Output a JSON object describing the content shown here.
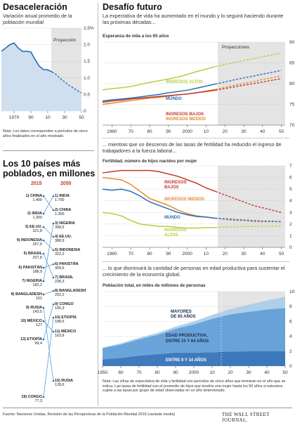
{
  "left_top": {
    "title": "Desaceleración",
    "subtitle": "Variación anual promedio de la población mundial",
    "note": "Nota: Los datos corresponden a períodos de cinco años finalizados en el año mostrado.",
    "projection_label": "Proyección"
  },
  "ranking": {
    "title": "Los 10 países más poblados, en millones",
    "year_left": "2015",
    "year_right": "2050"
  },
  "right": {
    "title": "Desafío futuro",
    "subtitle": "La expectativa de vida ha aumentado en el mundo y lo seguirá haciendo durante las próximas décadas...",
    "sub2": "... mientras que un descenso de las tasas de fertilidad ha reducido el ingreso de trabajadores a la fuerza laboral...",
    "sub3": "... lo que disminuirá la cantidad de personas en edad productiva para sustentar el crecimiento de la economía global.",
    "note": "Nota: Las cifras de expectativa de vida y fertilidad son períodos de cinco años que terminan en el año que se indica. Las tasas de fertilidad son el promedio de hijos que tendría una mujer hasta los 50 años si estuviera sujeta a las tasas por grupo de edad observadas en un año determinado."
  },
  "footer": {
    "source": "Fuente: Naciones Unidas, Revisión de las Perspectivas de la Población Mundial 2015 (variante media)",
    "brand": "THE WALL STREET JOURNAL."
  },
  "chart_data": [
    {
      "type": "area",
      "title": "Desaceleración",
      "x": [
        1955,
        1960,
        1965,
        1970,
        1975,
        1980,
        1985,
        1990,
        1995,
        2000,
        2005,
        2010,
        2015,
        2020,
        2025,
        2030,
        2035,
        2040,
        2045,
        2050
      ],
      "series": [
        {
          "values": [
            1.8,
            1.9,
            2.0,
            2.05,
            1.9,
            1.8,
            1.8,
            1.78,
            1.55,
            1.35,
            1.25,
            1.24,
            1.18,
            1.1,
            0.98,
            0.88,
            0.78,
            0.7,
            0.62,
            0.55
          ]
        }
      ],
      "xticks": [
        "1970",
        "90",
        "10",
        "30",
        "50"
      ],
      "yticks": [
        "0",
        "0.5",
        "1.0",
        "1.5",
        "2.0",
        "2,5%"
      ],
      "ylim": [
        0,
        2.5
      ],
      "projection_from": 2015
    },
    {
      "type": "table",
      "title": "Los 10 países más poblados, en millones",
      "columns": [
        "2015",
        "2050"
      ],
      "rows_2015": [
        {
          "rank": "1) CHINA",
          "value": "1.400"
        },
        {
          "rank": "2) INDIA",
          "value": "1.300"
        },
        {
          "rank": "3) EE.UU.",
          "value": "321,8"
        },
        {
          "rank": "4) INDONESIA",
          "value": "257,6"
        },
        {
          "rank": "5) BRASIL",
          "value": "207,8"
        },
        {
          "rank": "6) PAKISTÁN",
          "value": "188,9"
        },
        {
          "rank": "7) NIGERIA",
          "value": "182,2"
        },
        {
          "rank": "8) BANGLADESH",
          "value": "161"
        },
        {
          "rank": "9) RUSIA",
          "value": "143,5"
        },
        {
          "rank": "10) MÉXICO",
          "value": "127"
        },
        {
          "rank": "13) ETIOPÍA",
          "value": "99,4"
        },
        {
          "rank": "19) CONGO",
          "value": "77,3"
        }
      ],
      "rows_2050": [
        {
          "rank": "1) INDIA",
          "value": "1.700"
        },
        {
          "rank": "2) CHINA",
          "value": "1.300"
        },
        {
          "rank": "3) NIGERIA",
          "value": "398,5"
        },
        {
          "rank": "4) EE.UU.",
          "value": "388,9"
        },
        {
          "rank": "5) INDONESIA",
          "value": "322,2"
        },
        {
          "rank": "6) PAKISTÁN",
          "value": "309,6"
        },
        {
          "rank": "7) BRASIL",
          "value": "238,3"
        },
        {
          "rank": "8) BANGLADESH",
          "value": "202,2"
        },
        {
          "rank": "9) CONGO",
          "value": "195,3"
        },
        {
          "rank": "10) ETIOPÍA",
          "value": "188,5"
        },
        {
          "rank": "11) MÉXICO",
          "value": "163,8"
        },
        {
          "rank": "15) RUSIA",
          "value": "128,6"
        }
      ]
    },
    {
      "type": "line",
      "title": "Esperanza de vida a los 65 años",
      "x": [
        1955,
        1960,
        1965,
        1970,
        1975,
        1980,
        1985,
        1990,
        1995,
        2000,
        2005,
        2010,
        2015,
        2020,
        2025,
        2030,
        2035,
        2040,
        2045,
        2050
      ],
      "series": [
        {
          "name": "INGRESOS ALTOS",
          "values": [
            78.5,
            78.8,
            79.0,
            79.3,
            79.8,
            80.3,
            80.7,
            81.1,
            81.6,
            82.2,
            82.9,
            83.5,
            84.1,
            84.6,
            85.1,
            85.6,
            86.0,
            86.5,
            86.9,
            87.4
          ]
        },
        {
          "name": "MUNDO",
          "values": [
            75.8,
            76.1,
            76.3,
            76.5,
            76.8,
            77.1,
            77.4,
            77.8,
            78.1,
            78.4,
            78.9,
            79.4,
            79.9,
            80.4,
            80.9,
            81.4,
            81.8,
            82.3,
            82.7,
            83.2
          ]
        },
        {
          "name": "INGRESOS MEDIOS",
          "values": [
            75.0,
            75.3,
            75.6,
            75.9,
            76.2,
            76.5,
            76.7,
            77.0,
            77.3,
            77.5,
            77.8,
            78.2,
            78.6,
            79.1,
            79.6,
            80.0,
            80.5,
            81.0,
            81.4,
            81.9
          ]
        },
        {
          "name": "INGRESOS BAJOS",
          "values": [
            75.5,
            75.8,
            76.0,
            76.3,
            76.5,
            76.7,
            76.9,
            77.1,
            77.3,
            77.5,
            77.8,
            78.1,
            78.4,
            78.8,
            79.2,
            79.6,
            80.0,
            80.4,
            80.8,
            81.2
          ]
        }
      ],
      "xticks": [
        "1960",
        "70",
        "80",
        "90",
        "2000",
        "10",
        "20",
        "30",
        "40",
        "50"
      ],
      "yticks": [
        "70",
        "75",
        "80",
        "85",
        "90"
      ],
      "ylim": [
        70,
        90
      ],
      "projection_label": "Proyecciones",
      "projection_from": 2015
    },
    {
      "type": "line",
      "title": "Fertilidad, número de hijos nacidos por mujer",
      "x": [
        1955,
        1960,
        1965,
        1970,
        1975,
        1980,
        1985,
        1990,
        1995,
        2000,
        2005,
        2010,
        2015,
        2020,
        2025,
        2030,
        2035,
        2040,
        2045,
        2050
      ],
      "series": [
        {
          "name": "INGRESOS BAJOS",
          "values": [
            6.4,
            6.5,
            6.6,
            6.6,
            6.6,
            6.6,
            6.5,
            6.3,
            6.1,
            5.8,
            5.5,
            5.1,
            4.8,
            4.5,
            4.2,
            3.9,
            3.6,
            3.4,
            3.2,
            3.0
          ]
        },
        {
          "name": "INGRESOS MEDIOS",
          "values": [
            6.0,
            5.9,
            5.8,
            5.4,
            4.8,
            4.2,
            3.9,
            3.6,
            3.2,
            2.9,
            2.7,
            2.6,
            2.5,
            2.4,
            2.3,
            2.3,
            2.2,
            2.2,
            2.2,
            2.2
          ]
        },
        {
          "name": "MUNDO",
          "values": [
            5.0,
            4.9,
            5.0,
            4.8,
            4.4,
            3.9,
            3.6,
            3.3,
            3.0,
            2.8,
            2.65,
            2.6,
            2.5,
            2.45,
            2.4,
            2.35,
            2.3,
            2.25,
            2.25,
            2.2
          ]
        },
        {
          "name": "INGRESOS ALTOS",
          "values": [
            3.0,
            2.9,
            2.7,
            2.3,
            2.0,
            1.9,
            1.8,
            1.8,
            1.7,
            1.65,
            1.65,
            1.7,
            1.7,
            1.75,
            1.75,
            1.8,
            1.8,
            1.8,
            1.8,
            1.85
          ]
        }
      ],
      "xticks": [
        "1960",
        "70",
        "80",
        "90",
        "2000",
        "10",
        "20",
        "30",
        "40",
        "50"
      ],
      "yticks": [
        "0",
        "1",
        "2",
        "3",
        "4",
        "5",
        "6",
        "7"
      ],
      "ylim": [
        0,
        7
      ],
      "projection_from": 2015
    },
    {
      "type": "area",
      "title": "Población total, en miles de millones de personas",
      "x": [
        1950,
        1960,
        1970,
        1980,
        1990,
        2000,
        2010,
        2020,
        2030,
        2040,
        2050
      ],
      "series": [
        {
          "name": "ENTRE 0 Y 14 AÑOS",
          "values": [
            0.9,
            1.1,
            1.4,
            1.6,
            1.8,
            1.8,
            1.85,
            1.95,
            1.98,
            2.0,
            2.0
          ]
        },
        {
          "name": "EDAD PRODUCTIVA, ENTRE 15 Y 64 AÑOS",
          "values": [
            1.5,
            1.8,
            2.2,
            2.6,
            3.2,
            3.8,
            4.5,
            5.0,
            5.3,
            5.6,
            5.8
          ]
        },
        {
          "name": "MAYORES DE 65 AÑOS",
          "values": [
            0.1,
            0.15,
            0.2,
            0.25,
            0.3,
            0.4,
            0.5,
            0.7,
            0.95,
            1.2,
            1.5
          ]
        }
      ],
      "xticks": [
        "1950",
        "60",
        "70",
        "80",
        "90",
        "2000",
        "10",
        "20",
        "30",
        "40",
        "50"
      ],
      "yticks": [
        "0",
        "2",
        "4",
        "6",
        "8",
        "10"
      ],
      "ylim": [
        0,
        10
      ],
      "projection_from": 2015
    }
  ]
}
